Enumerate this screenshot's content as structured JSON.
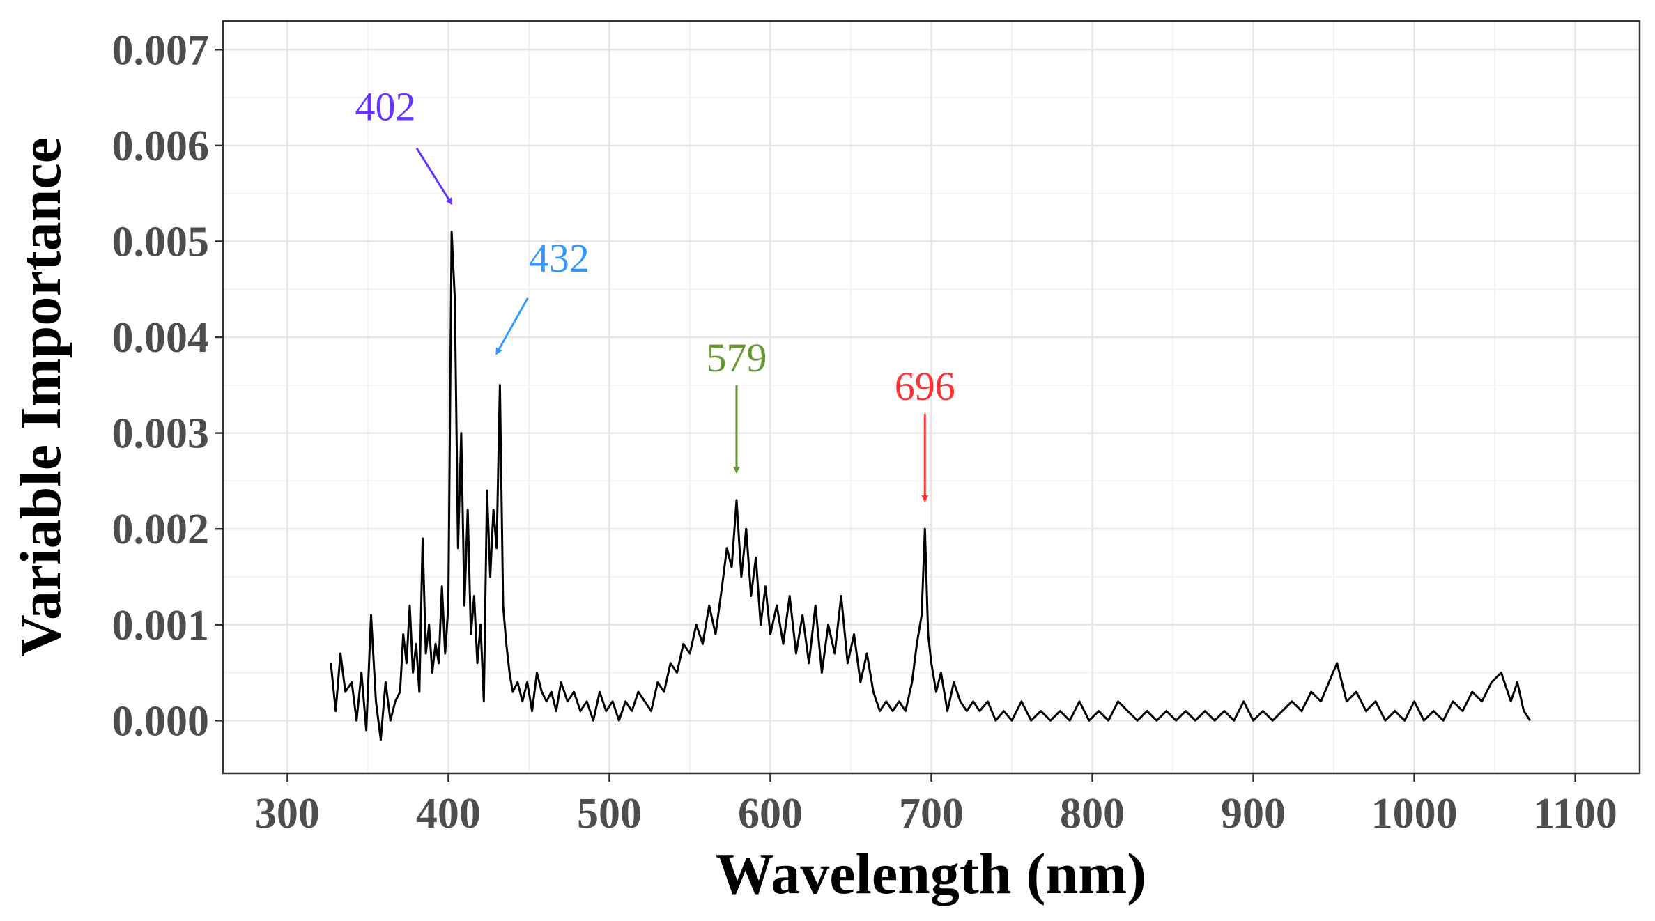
{
  "chart_data": {
    "type": "line",
    "title": "",
    "xlabel": "Wavelength (nm)",
    "ylabel": "Variable Importance",
    "xlim": [
      260,
      1140
    ],
    "ylim": [
      -0.00055,
      0.0073
    ],
    "xticks": [
      300,
      400,
      500,
      600,
      700,
      800,
      900,
      1000,
      1100
    ],
    "xtick_labels": [
      "300",
      "400",
      "500",
      "600",
      "700",
      "800",
      "900",
      "1000",
      "1100"
    ],
    "yticks": [
      0.0,
      0.001,
      0.002,
      0.003,
      0.004,
      0.005,
      0.006,
      0.007
    ],
    "ytick_labels": [
      "0.000",
      "0.001",
      "0.002",
      "0.003",
      "0.004",
      "0.005",
      "0.006",
      "0.007"
    ],
    "grid": true,
    "line_color": "#000000",
    "series": [
      {
        "name": "Variable Importance",
        "x": [
          327,
          330,
          333,
          336,
          340,
          343,
          346,
          349,
          352,
          355,
          358,
          361,
          364,
          367,
          370,
          372,
          374,
          376,
          378,
          380,
          382,
          384,
          386,
          388,
          390,
          392,
          394,
          396,
          398,
          400,
          402,
          404,
          406,
          408,
          410,
          412,
          414,
          416,
          418,
          420,
          422,
          424,
          426,
          428,
          430,
          432,
          434,
          436,
          438,
          440,
          443,
          446,
          449,
          452,
          455,
          458,
          461,
          464,
          467,
          470,
          474,
          478,
          482,
          486,
          490,
          494,
          498,
          502,
          506,
          510,
          514,
          518,
          522,
          526,
          530,
          534,
          538,
          542,
          546,
          550,
          554,
          558,
          562,
          566,
          570,
          573,
          576,
          579,
          582,
          585,
          588,
          591,
          594,
          597,
          600,
          604,
          608,
          612,
          616,
          620,
          624,
          628,
          632,
          636,
          640,
          644,
          648,
          652,
          656,
          660,
          664,
          668,
          672,
          676,
          680,
          684,
          688,
          691,
          694,
          696,
          698,
          700,
          703,
          706,
          710,
          714,
          718,
          722,
          726,
          730,
          735,
          740,
          745,
          750,
          756,
          762,
          768,
          774,
          780,
          786,
          792,
          798,
          804,
          810,
          816,
          822,
          828,
          834,
          840,
          846,
          852,
          858,
          864,
          870,
          876,
          882,
          888,
          894,
          900,
          906,
          912,
          918,
          924,
          930,
          936,
          942,
          947,
          952,
          958,
          964,
          970,
          976,
          982,
          988,
          994,
          1000,
          1006,
          1012,
          1018,
          1024,
          1030,
          1036,
          1042,
          1048,
          1054,
          1060,
          1064,
          1068,
          1072
        ],
        "y": [
          0.0006,
          0.0001,
          0.0007,
          0.0003,
          0.0004,
          0.0,
          0.0005,
          -0.0001,
          0.0011,
          0.0002,
          -0.0002,
          0.0004,
          0.0,
          0.0002,
          0.0003,
          0.0009,
          0.0006,
          0.0012,
          0.0005,
          0.0008,
          0.0003,
          0.0019,
          0.0007,
          0.001,
          0.0005,
          0.0008,
          0.0006,
          0.0014,
          0.0007,
          0.0012,
          0.0051,
          0.0044,
          0.0018,
          0.003,
          0.0012,
          0.0022,
          0.0009,
          0.0013,
          0.0006,
          0.001,
          0.0002,
          0.0024,
          0.0015,
          0.0022,
          0.0018,
          0.0035,
          0.0012,
          0.0008,
          0.0005,
          0.0003,
          0.0004,
          0.0002,
          0.0004,
          0.0001,
          0.0005,
          0.0003,
          0.0002,
          0.0003,
          0.0001,
          0.0004,
          0.0002,
          0.0003,
          0.0001,
          0.0002,
          0.0,
          0.0003,
          0.0001,
          0.0002,
          0.0,
          0.0002,
          0.0001,
          0.0003,
          0.0002,
          0.0001,
          0.0004,
          0.0003,
          0.0006,
          0.0005,
          0.0008,
          0.0007,
          0.001,
          0.0008,
          0.0012,
          0.0009,
          0.0014,
          0.0018,
          0.0016,
          0.0023,
          0.0015,
          0.002,
          0.0013,
          0.0017,
          0.001,
          0.0014,
          0.0009,
          0.0012,
          0.0008,
          0.0013,
          0.0007,
          0.0011,
          0.0006,
          0.0012,
          0.0005,
          0.001,
          0.0007,
          0.0013,
          0.0006,
          0.0009,
          0.0004,
          0.0007,
          0.0003,
          0.0001,
          0.0002,
          0.0001,
          0.0002,
          0.0001,
          0.0004,
          0.0008,
          0.0011,
          0.002,
          0.0009,
          0.0006,
          0.0003,
          0.0005,
          0.0001,
          0.0004,
          0.0002,
          0.0001,
          0.0002,
          0.0001,
          0.0002,
          0.0,
          0.0001,
          0.0,
          0.0002,
          0.0,
          0.0001,
          0.0,
          0.0001,
          0.0,
          0.0002,
          0.0,
          0.0001,
          0.0,
          0.0002,
          0.0001,
          0.0,
          0.0001,
          0.0,
          0.0001,
          0.0,
          0.0001,
          0.0,
          0.0001,
          0.0,
          0.0001,
          0.0,
          0.0002,
          0.0,
          0.0001,
          0.0,
          0.0001,
          0.0002,
          0.0001,
          0.0003,
          0.0002,
          0.0004,
          0.0006,
          0.0002,
          0.0003,
          0.0001,
          0.0002,
          0.0,
          0.0001,
          0.0,
          0.0002,
          0.0,
          0.0001,
          0.0,
          0.0002,
          0.0001,
          0.0003,
          0.0002,
          0.0004,
          0.0005,
          0.0002,
          0.0004,
          0.0001,
          0.0
        ]
      }
    ],
    "annotations": [
      {
        "text": "402",
        "x": 402,
        "color": "#6633FF"
      },
      {
        "text": "432",
        "x": 432,
        "color": "#3399FF"
      },
      {
        "text": "579",
        "x": 579,
        "color": "#669933"
      },
      {
        "text": "696",
        "x": 696,
        "color": "#FF3333"
      }
    ]
  }
}
